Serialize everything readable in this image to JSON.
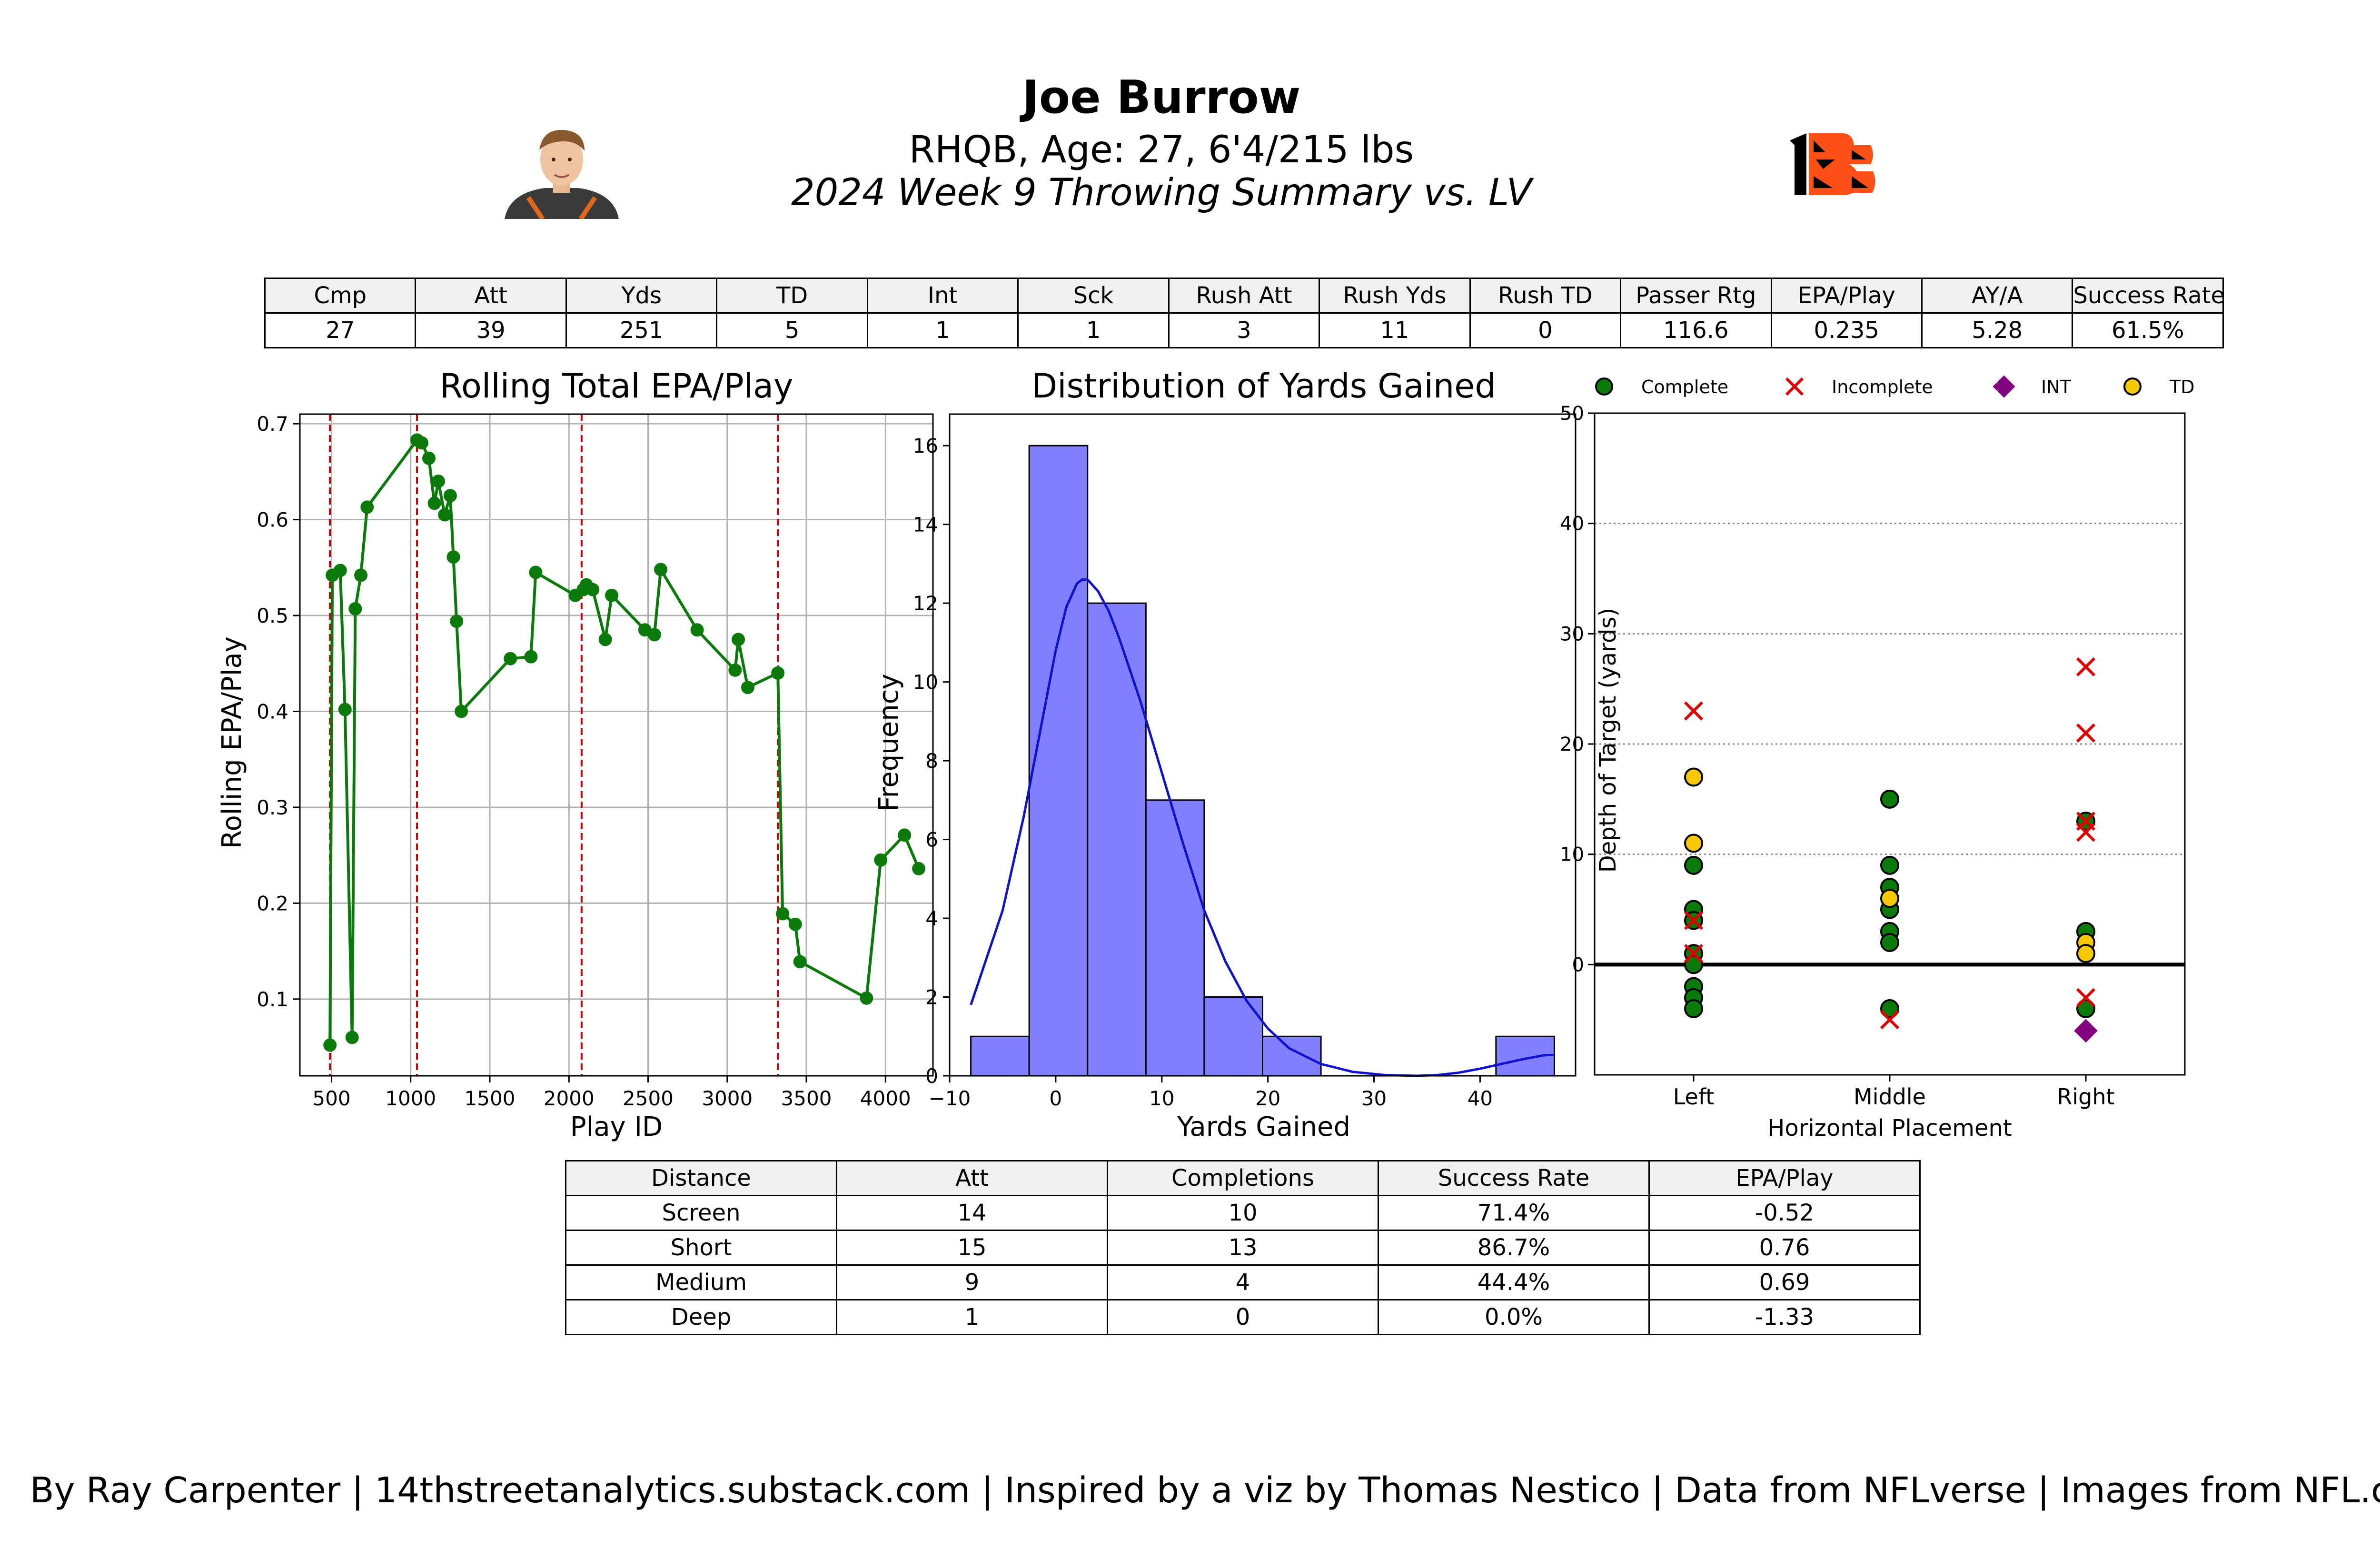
{
  "header": {
    "name": "Joe Burrow",
    "bio": "RHQB, Age: 27, 6'4/215 lbs",
    "game": "2024 Week 9 Throwing Summary vs. LV"
  },
  "stats_table": {
    "headers": [
      "Cmp",
      "Att",
      "Yds",
      "TD",
      "Int",
      "Sck",
      "Rush Att",
      "Rush Yds",
      "Rush TD",
      "Passer Rtg",
      "EPA/Play",
      "AY/A",
      "Success Rate"
    ],
    "values": [
      "27",
      "39",
      "251",
      "5",
      "1",
      "1",
      "3",
      "11",
      "0",
      "116.6",
      "0.235",
      "5.28",
      "61.5%"
    ]
  },
  "distance_table": {
    "headers": [
      "Distance",
      "Att",
      "Completions",
      "Success Rate",
      "EPA/Play"
    ],
    "rows": [
      [
        "Screen",
        "14",
        "10",
        "71.4%",
        "-0.52"
      ],
      [
        "Short",
        "15",
        "13",
        "86.7%",
        "0.76"
      ],
      [
        "Medium",
        "9",
        "4",
        "44.4%",
        "0.69"
      ],
      [
        "Deep",
        "1",
        "0",
        "0.0%",
        "-1.33"
      ]
    ]
  },
  "footer": "By Ray Carpenter | 14thstreetanalytics.substack.com | Inspired by a viz by Thomas Nestico | Data from NFLverse | Images from NFL.com",
  "colors": {
    "line": "#0a7a0a",
    "hist": "#8080ff",
    "kde": "#1010d0",
    "complete": "#0a7a0a",
    "incomplete": "#e00000",
    "int": "#800080",
    "td": "#f5c800",
    "quarter_line": "#cc0000"
  },
  "chart_data": [
    {
      "type": "line",
      "title": "Rolling Total EPA/Play",
      "xlabel": "Play ID",
      "ylabel": "Rolling EPA/Play",
      "xlim": [
        300,
        4300
      ],
      "ylim": [
        0.02,
        0.71
      ],
      "xticks": [
        500,
        1000,
        1500,
        2000,
        2500,
        3000,
        3500,
        4000
      ],
      "yticks": [
        0.1,
        0.2,
        0.3,
        0.4,
        0.5,
        0.6,
        0.7
      ],
      "quarter_lines": [
        490,
        1040,
        2080,
        3320
      ],
      "grid": true,
      "x": [
        490,
        505,
        555,
        585,
        630,
        650,
        685,
        725,
        1040,
        1070,
        1115,
        1150,
        1175,
        1215,
        1250,
        1270,
        1290,
        1320,
        1630,
        1760,
        1790,
        2040,
        2090,
        2110,
        2150,
        2230,
        2270,
        2480,
        2540,
        2580,
        2810,
        3050,
        3070,
        3130,
        3320,
        3350,
        3430,
        3460,
        3880,
        3970,
        4120,
        4210
      ],
      "y": [
        0.052,
        0.542,
        0.547,
        0.402,
        0.06,
        0.507,
        0.542,
        0.613,
        0.683,
        0.68,
        0.664,
        0.617,
        0.64,
        0.605,
        0.625,
        0.561,
        0.494,
        0.4,
        0.455,
        0.457,
        0.545,
        0.521,
        0.527,
        0.532,
        0.527,
        0.475,
        0.521,
        0.485,
        0.48,
        0.548,
        0.485,
        0.443,
        0.475,
        0.425,
        0.44,
        0.189,
        0.178,
        0.139,
        0.101,
        0.245,
        0.271,
        0.236
      ]
    },
    {
      "type": "bar",
      "title": "Distribution of Yards Gained",
      "xlabel": "Yards Gained",
      "ylabel": "Frequency",
      "xlim": [
        -10,
        49
      ],
      "ylim": [
        0,
        16.8
      ],
      "xticks": [
        -10,
        0,
        10,
        20,
        30,
        40
      ],
      "yticks": [
        0,
        2,
        4,
        6,
        8,
        10,
        12,
        14,
        16
      ],
      "bins": [
        {
          "from": -8,
          "to": -2.5,
          "count": 1
        },
        {
          "from": -2.5,
          "to": 3,
          "count": 16
        },
        {
          "from": 3,
          "to": 8.5,
          "count": 12
        },
        {
          "from": 8.5,
          "to": 14,
          "count": 7
        },
        {
          "from": 14,
          "to": 19.5,
          "count": 2
        },
        {
          "from": 19.5,
          "to": 25,
          "count": 1
        },
        {
          "from": 41.5,
          "to": 47,
          "count": 1
        }
      ],
      "kde": {
        "x": [
          -8,
          -5,
          -3,
          -1,
          0,
          1,
          2,
          2.5,
          3,
          4,
          5,
          6,
          8,
          10,
          12,
          14,
          16,
          18,
          20,
          22,
          25,
          28,
          31,
          34,
          36,
          38,
          40,
          42,
          44,
          46,
          47
        ],
        "y": [
          1.8,
          4.2,
          6.6,
          9.4,
          10.8,
          11.9,
          12.5,
          12.6,
          12.6,
          12.3,
          11.8,
          11.1,
          9.5,
          7.7,
          5.9,
          4.2,
          2.9,
          1.9,
          1.2,
          0.7,
          0.3,
          0.1,
          0.02,
          0,
          0.02,
          0.08,
          0.18,
          0.3,
          0.42,
          0.52,
          0.53
        ]
      }
    },
    {
      "type": "scatter",
      "xlabel": "Horizontal Placement",
      "ylabel": "Depth of Target (yards)",
      "categories": [
        "Left",
        "Middle",
        "Right"
      ],
      "ylim": [
        -10,
        50
      ],
      "yticks": [
        0,
        10,
        20,
        30,
        40,
        50
      ],
      "legend": "top",
      "series": [
        {
          "name": "Complete",
          "points": [
            [
              "Left",
              9
            ],
            [
              "Left",
              5
            ],
            [
              "Left",
              4
            ],
            [
              "Left",
              1
            ],
            [
              "Left",
              0
            ],
            [
              "Left",
              -2
            ],
            [
              "Left",
              -3
            ],
            [
              "Left",
              -4
            ],
            [
              "Middle",
              15
            ],
            [
              "Middle",
              9
            ],
            [
              "Middle",
              7
            ],
            [
              "Middle",
              5
            ],
            [
              "Middle",
              3
            ],
            [
              "Middle",
              2
            ],
            [
              "Middle",
              -4
            ],
            [
              "Right",
              13
            ],
            [
              "Right",
              3
            ],
            [
              "Right",
              -4
            ]
          ]
        },
        {
          "name": "Incomplete",
          "points": [
            [
              "Left",
              23
            ],
            [
              "Left",
              4
            ],
            [
              "Left",
              1
            ],
            [
              "Middle",
              -5
            ],
            [
              "Right",
              27
            ],
            [
              "Right",
              21
            ],
            [
              "Right",
              13
            ],
            [
              "Right",
              12
            ],
            [
              "Right",
              -3
            ]
          ]
        },
        {
          "name": "INT",
          "points": [
            [
              "Right",
              -6
            ]
          ]
        },
        {
          "name": "TD",
          "points": [
            [
              "Left",
              17
            ],
            [
              "Left",
              11
            ],
            [
              "Middle",
              6
            ],
            [
              "Right",
              2
            ],
            [
              "Right",
              1
            ]
          ]
        }
      ]
    }
  ]
}
